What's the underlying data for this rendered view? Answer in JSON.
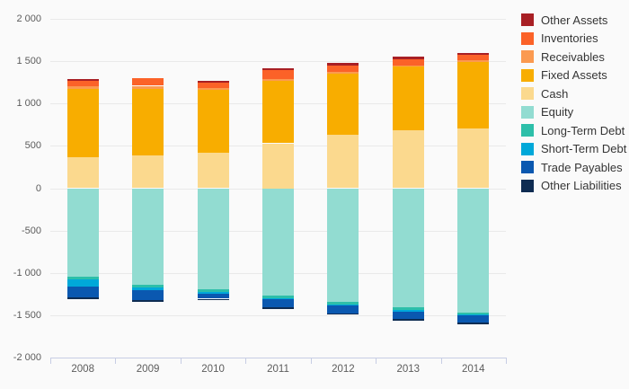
{
  "chart_data": {
    "type": "bar",
    "stacked": true,
    "title": "",
    "xlabel": "",
    "ylabel": "",
    "categories": [
      "2008",
      "2009",
      "2010",
      "2011",
      "2012",
      "2013",
      "2014"
    ],
    "series": [
      {
        "name": "Other Assets",
        "color": "#a81f24",
        "side": "positive",
        "values": [
          25,
          0,
          20,
          20,
          30,
          30,
          20
        ]
      },
      {
        "name": "Inventories",
        "color": "#fb6228",
        "side": "positive",
        "values": [
          60,
          85,
          65,
          105,
          75,
          75,
          65
        ]
      },
      {
        "name": "Receivables",
        "color": "#fb9a50",
        "side": "positive",
        "values": [
          30,
          40,
          20,
          20,
          20,
          15,
          15
        ]
      },
      {
        "name": "Fixed Assets",
        "color": "#f8ad00",
        "side": "positive",
        "values": [
          810,
          780,
          745,
          740,
          725,
          750,
          790
        ]
      },
      {
        "name": "Cash",
        "color": "#fbd98e",
        "side": "positive",
        "values": [
          365,
          390,
          420,
          530,
          630,
          685,
          705
        ]
      },
      {
        "name": "Equity",
        "color": "#92dcd1",
        "side": "negative",
        "values": [
          -1040,
          -1140,
          -1195,
          -1270,
          -1340,
          -1410,
          -1465
        ]
      },
      {
        "name": "Long-Term Debt",
        "color": "#2dbfa9",
        "side": "negative",
        "values": [
          -40,
          -35,
          -35,
          -30,
          -30,
          -30,
          -30
        ]
      },
      {
        "name": "Short-Term Debt",
        "color": "#00a8d9",
        "side": "negative",
        "values": [
          -85,
          -30,
          -20,
          -15,
          -10,
          -20,
          -10
        ]
      },
      {
        "name": "Trade Payables",
        "color": "#0a58b0",
        "side": "negative",
        "values": [
          -125,
          -115,
          -55,
          -95,
          -95,
          -85,
          -85
        ]
      },
      {
        "name": "Other Liabilities",
        "color": "#0e2c52",
        "side": "negative",
        "values": [
          -20,
          -20,
          -20,
          -20,
          -20,
          -20,
          -20
        ]
      }
    ],
    "y_axis": {
      "min": -2000,
      "max": 2000,
      "tick_interval": 500,
      "grid": true,
      "ticks": [
        {
          "value": 2000,
          "label": "2 000"
        },
        {
          "value": 1500,
          "label": "1 500"
        },
        {
          "value": 1000,
          "label": "1 000"
        },
        {
          "value": 500,
          "label": "500"
        },
        {
          "value": 0,
          "label": "0"
        },
        {
          "value": -500,
          "label": "-500"
        },
        {
          "value": -1000,
          "label": "-1 000"
        },
        {
          "value": -1500,
          "label": "-1 500"
        },
        {
          "value": -2000,
          "label": "-2 000"
        }
      ]
    },
    "legend": {
      "position": "right"
    }
  }
}
